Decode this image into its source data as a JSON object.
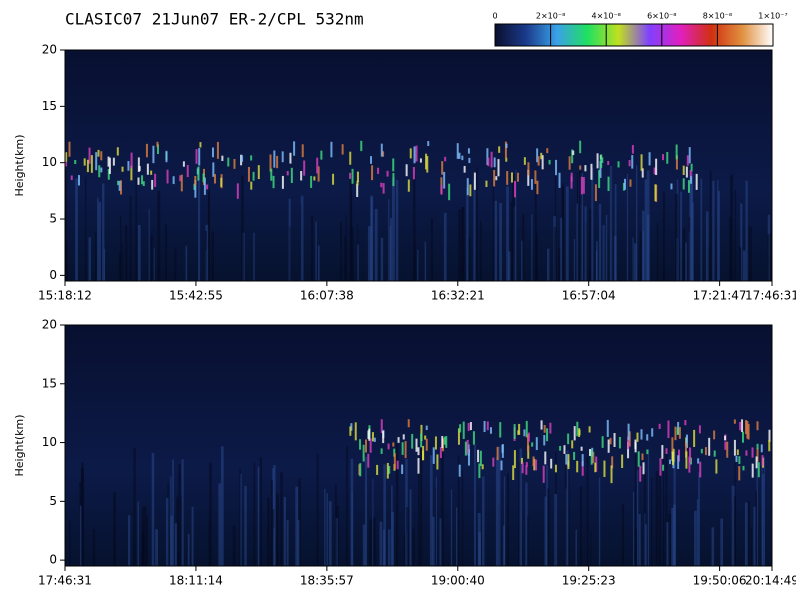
{
  "title": "CLASIC07 21Jun07 ER-2/CPL 532nm",
  "colorbar": {
    "lim": [
      0,
      1e-07
    ],
    "ticks": [
      0,
      {
        "value": 2e-08,
        "label": "2×10⁻⁸"
      },
      {
        "value": 4e-08,
        "label": "4×10⁻⁸"
      },
      {
        "value": 6e-08,
        "label": "6×10⁻⁸"
      },
      {
        "value": 8e-08,
        "label": "8×10⁻⁸"
      },
      {
        "value": 1e-07,
        "label": "1×10⁻⁷"
      }
    ],
    "colors": [
      "#0a0f2e",
      "#1a3a8a",
      "#3aa0e8",
      "#20e060",
      "#c0e020",
      "#8040ff",
      "#e020c0",
      "#d03010",
      "#e09040",
      "#ffffff"
    ]
  },
  "chart_data": [
    {
      "type": "heatmap",
      "ylabel": "Height(km)",
      "ylim": [
        -0.5,
        20
      ],
      "yticks": [
        0,
        5,
        10,
        15,
        20
      ],
      "xticks": [
        "15:18:12",
        "15:42:55",
        "16:07:38",
        "16:32:21",
        "16:57:04",
        "17:21:47",
        "17:46:31"
      ]
    },
    {
      "type": "heatmap",
      "ylabel": "Height(km)",
      "ylim": [
        -0.5,
        20
      ],
      "yticks": [
        0,
        5,
        10,
        15,
        20
      ],
      "xticks": [
        "17:46:31",
        "18:11:14",
        "18:35:57",
        "19:00:40",
        "19:25:23",
        "19:50:06",
        "20:14:49"
      ]
    }
  ]
}
